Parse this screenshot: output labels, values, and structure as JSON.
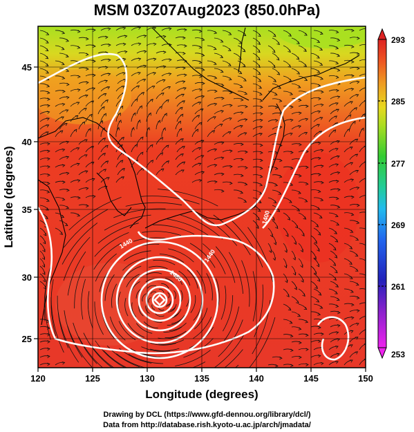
{
  "title": "MSM 03Z07Aug2023 (850.0hPa)",
  "map": {
    "xlabel": "Longitude (degrees)",
    "ylabel": "Latitude  (degrees)",
    "x_ticks": [
      "120",
      "125",
      "130",
      "135",
      "140",
      "145",
      "150"
    ],
    "y_ticks": [
      "25",
      "30",
      "35",
      "40",
      "45"
    ],
    "lon_range": [
      120,
      150
    ],
    "lat_range": [
      22.4,
      47.6
    ],
    "contour_labels": [
      "1440",
      "1440",
      "1480",
      "1400"
    ],
    "typhoon_center": [
      131.2,
      28.0
    ]
  },
  "colorbar": {
    "labels": [
      "293",
      "285",
      "277",
      "269",
      "261",
      "253"
    ],
    "range": [
      253,
      293
    ],
    "colors": [
      "#ee22ee",
      "#3333cc",
      "#2266ee",
      "#22bbee",
      "#22cc88",
      "#33cc33",
      "#99dd22",
      "#dddd22",
      "#ee9922",
      "#ee4422",
      "#dd2222"
    ]
  },
  "credits": {
    "line1": "Drawing by DCL (https://www.gfd-dennou.org/library/dcl/)",
    "line2": "Data from http://database.rish.kyoto-u.ac.jp/arch/jmadata/"
  }
}
